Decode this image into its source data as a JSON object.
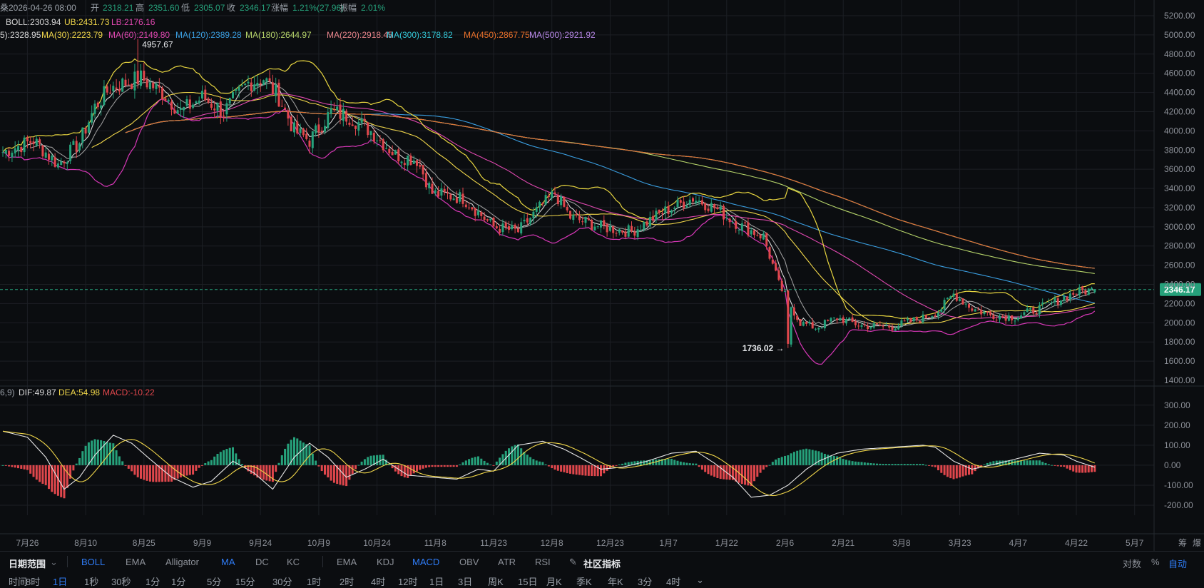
{
  "info_line": {
    "prefix": "桑",
    "date": "2026-04-26 08:00",
    "open_label": "开",
    "open": "2318.21",
    "high_label": "高",
    "high": "2351.60",
    "low_label": "低",
    "low": "2305.07",
    "close_label": "收",
    "close": "2346.17",
    "change_label": "涨幅",
    "change": "1.21%(27.96)",
    "amp_label": "振幅",
    "amp": "2.01%"
  },
  "boll_line": {
    "boll": "BOLL:2303.94",
    "ub": "UB:2431.73",
    "lb": "LB:2176.16"
  },
  "ma_line": [
    {
      "text": "5):2328.95",
      "color": "#d8d8d8"
    },
    {
      "text": "MA(30):2223.79",
      "color": "#f0d64a"
    },
    {
      "text": "MA(60):2149.80",
      "color": "#e048b0"
    },
    {
      "text": "MA(120):2389.28",
      "color": "#3a9ee0"
    },
    {
      "text": "MA(180):2644.97",
      "color": "#b6d46a"
    },
    {
      "text": "MA(220):2918.45",
      "color": "#e8848a"
    },
    {
      "text": "MA(300):3178.82",
      "color": "#34c8d8"
    },
    {
      "text": "MA(450):2867.75",
      "color": "#e8702a"
    },
    {
      "text": "MA(500):2921.92",
      "color": "#b888e8"
    }
  ],
  "macd_line": {
    "prefix": "6,9)",
    "dif": "DIF:49.87",
    "dea": "DEA:54.98",
    "macd": "MACD:-10.22"
  },
  "annotations": {
    "high_marker": "4957.67",
    "low_marker": "1736.02 →",
    "last_price": "2346.17"
  },
  "colors": {
    "up": "#26a17b",
    "down": "#e0474c",
    "background": "#0b0d10",
    "grid": "#1c1f24",
    "last_price_tag": "#26a17b"
  },
  "chart_data": {
    "type": "candlestick",
    "price_axis": {
      "ticks": [
        "5200.00",
        "5000.00",
        "4800.00",
        "4600.00",
        "4400.00",
        "4200.00",
        "4000.00",
        "3800.00",
        "3600.00",
        "3400.00",
        "3200.00",
        "3000.00",
        "2800.00",
        "2600.00",
        "2400.00",
        "2200.00",
        "2000.00",
        "1800.00",
        "1600.00",
        "1400.00"
      ],
      "ylim": [
        1400,
        5200
      ]
    },
    "macd_axis": {
      "ticks": [
        "300.00",
        "200.00",
        "100.00",
        "0.00",
        "-100.00",
        "-200.00"
      ],
      "ylim": [
        -250,
        310
      ]
    },
    "x_ticks": [
      "7月26",
      "8月10",
      "8月25",
      "9月9",
      "9月24",
      "10月9",
      "10月24",
      "11月8",
      "11月23",
      "12月8",
      "12月23",
      "1月7",
      "1月22",
      "2月6",
      "2月21",
      "3月8",
      "3月23",
      "4月7",
      "4月22",
      "5月7"
    ],
    "price_anchors": [
      [
        0,
        3780
      ],
      [
        10,
        3900
      ],
      [
        18,
        3650
      ],
      [
        25,
        3880
      ],
      [
        30,
        4250
      ],
      [
        35,
        4450
      ],
      [
        40,
        4500
      ],
      [
        45,
        4550
      ],
      [
        52,
        4400
      ],
      [
        58,
        4200
      ],
      [
        65,
        4350
      ],
      [
        72,
        4200
      ],
      [
        80,
        4500
      ],
      [
        85,
        4550
      ],
      [
        90,
        4350
      ],
      [
        95,
        4000
      ],
      [
        100,
        3900
      ],
      [
        107,
        4200
      ],
      [
        113,
        4150
      ],
      [
        120,
        4000
      ],
      [
        128,
        3750
      ],
      [
        135,
        3700
      ],
      [
        140,
        3350
      ],
      [
        150,
        3300
      ],
      [
        160,
        3000
      ],
      [
        168,
        2950
      ],
      [
        175,
        3200
      ],
      [
        180,
        3350
      ],
      [
        185,
        3100
      ],
      [
        195,
        3000
      ],
      [
        205,
        2950
      ],
      [
        215,
        3150
      ],
      [
        225,
        3300
      ],
      [
        232,
        3200
      ],
      [
        240,
        3020
      ],
      [
        248,
        2900
      ],
      [
        253,
        2400
      ],
      [
        260,
        2000
      ],
      [
        265,
        1950
      ],
      [
        272,
        2050
      ],
      [
        280,
        1970
      ],
      [
        290,
        1960
      ],
      [
        300,
        2050
      ],
      [
        305,
        2120
      ],
      [
        310,
        2300
      ],
      [
        316,
        2150
      ],
      [
        322,
        2080
      ],
      [
        330,
        2060
      ],
      [
        338,
        2150
      ],
      [
        345,
        2250
      ],
      [
        350,
        2320
      ],
      [
        356,
        2346
      ]
    ],
    "macd_anchors": [
      [
        0,
        170
      ],
      [
        8,
        140
      ],
      [
        14,
        40
      ],
      [
        20,
        -120
      ],
      [
        25,
        -60
      ],
      [
        30,
        50
      ],
      [
        36,
        150
      ],
      [
        42,
        110
      ],
      [
        48,
        30
      ],
      [
        55,
        -60
      ],
      [
        62,
        -110
      ],
      [
        68,
        -80
      ],
      [
        75,
        20
      ],
      [
        82,
        -40
      ],
      [
        88,
        -120
      ],
      [
        95,
        40
      ],
      [
        100,
        110
      ],
      [
        106,
        40
      ],
      [
        112,
        -60
      ],
      [
        118,
        -20
      ],
      [
        124,
        30
      ],
      [
        132,
        -50
      ],
      [
        140,
        -60
      ],
      [
        148,
        -70
      ],
      [
        155,
        -20
      ],
      [
        160,
        -30
      ],
      [
        168,
        100
      ],
      [
        176,
        120
      ],
      [
        183,
        80
      ],
      [
        188,
        40
      ],
      [
        195,
        -20
      ],
      [
        202,
        -10
      ],
      [
        210,
        20
      ],
      [
        218,
        60
      ],
      [
        226,
        70
      ],
      [
        232,
        10
      ],
      [
        238,
        -60
      ],
      [
        244,
        -160
      ],
      [
        250,
        -150
      ],
      [
        256,
        -100
      ],
      [
        262,
        -20
      ],
      [
        266,
        20
      ],
      [
        272,
        60
      ],
      [
        280,
        80
      ],
      [
        290,
        90
      ],
      [
        300,
        100
      ],
      [
        304,
        90
      ],
      [
        310,
        20
      ],
      [
        316,
        -20
      ],
      [
        322,
        0
      ],
      [
        330,
        30
      ],
      [
        338,
        60
      ],
      [
        346,
        50
      ],
      [
        350,
        20
      ],
      [
        356,
        -10
      ]
    ],
    "high_point": {
      "index": 44,
      "value": 4957.67
    },
    "low_point": {
      "index": 256,
      "value": 1736.02
    }
  },
  "toolbar": {
    "range_label": "日期范围",
    "indicators_main": [
      "BOLL",
      "EMA",
      "Alligator",
      "MA",
      "DC",
      "KC"
    ],
    "indicators_sub": [
      "EMA",
      "KDJ",
      "MACD",
      "OBV",
      "ATR",
      "RSI"
    ],
    "community": "社区指标",
    "right_items": [
      "对数",
      "%",
      "自动"
    ],
    "intervals": [
      "时间",
      "8时",
      "1日",
      "1秒",
      "30秒",
      "1分",
      "1分",
      "5分",
      "15分",
      "30分",
      "1时",
      "2时",
      "4时",
      "12时",
      "1日",
      "3日",
      "周K",
      "15日",
      "月K",
      "季K",
      "年K",
      "3分",
      "4时",
      "⌄"
    ]
  }
}
